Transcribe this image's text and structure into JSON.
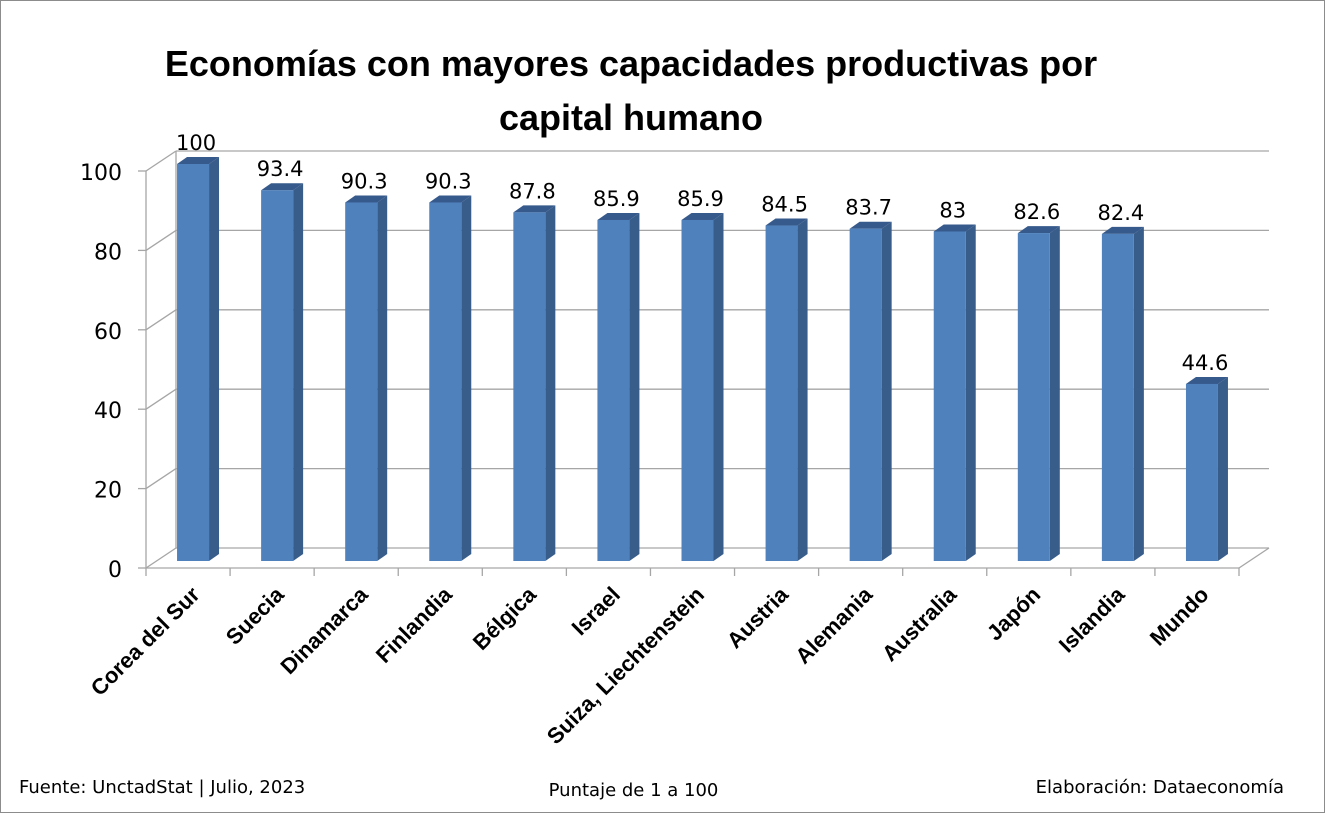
{
  "title_lines": [
    "Economías con mayores capacidades productivas por",
    "capital humano"
  ],
  "footer": {
    "source": "Fuente: UnctadStat | Julio, 2023",
    "unit": "Puntaje de 1 a 100",
    "credit": "Elaboración: Dataeconomía"
  },
  "colors": {
    "bar_front": "#4f81bd",
    "bar_side": "#385d8a",
    "bar_top": "#375a8c",
    "grid": "#a6a6a6"
  },
  "chart_data": {
    "type": "bar",
    "title": "Economías con mayores capacidades productivas por capital humano",
    "xlabel": "Puntaje de 1 a 100",
    "ylabel": "",
    "categories": [
      "Corea del Sur",
      "Suecia",
      "Dinamarca",
      "Finlandia",
      "Bélgica",
      "Israel",
      "Suiza, Liechtenstein",
      "Austria",
      "Alemania",
      "Australia",
      "Japón",
      "Islandia",
      "Mundo"
    ],
    "values": [
      100,
      93.4,
      90.3,
      90.3,
      87.8,
      85.9,
      85.9,
      84.5,
      83.7,
      83,
      82.6,
      82.4,
      44.6
    ],
    "value_labels": [
      "100",
      "93.4",
      "90.3",
      "90.3",
      "87.8",
      "85.9",
      "85.9",
      "84.5",
      "83.7",
      "83",
      "82.6",
      "82.4",
      "44.6"
    ],
    "ylim": [
      0,
      100
    ],
    "yticks": [
      "0",
      "20",
      "40",
      "60",
      "80",
      "100"
    ],
    "grid": true,
    "legend": "none"
  }
}
